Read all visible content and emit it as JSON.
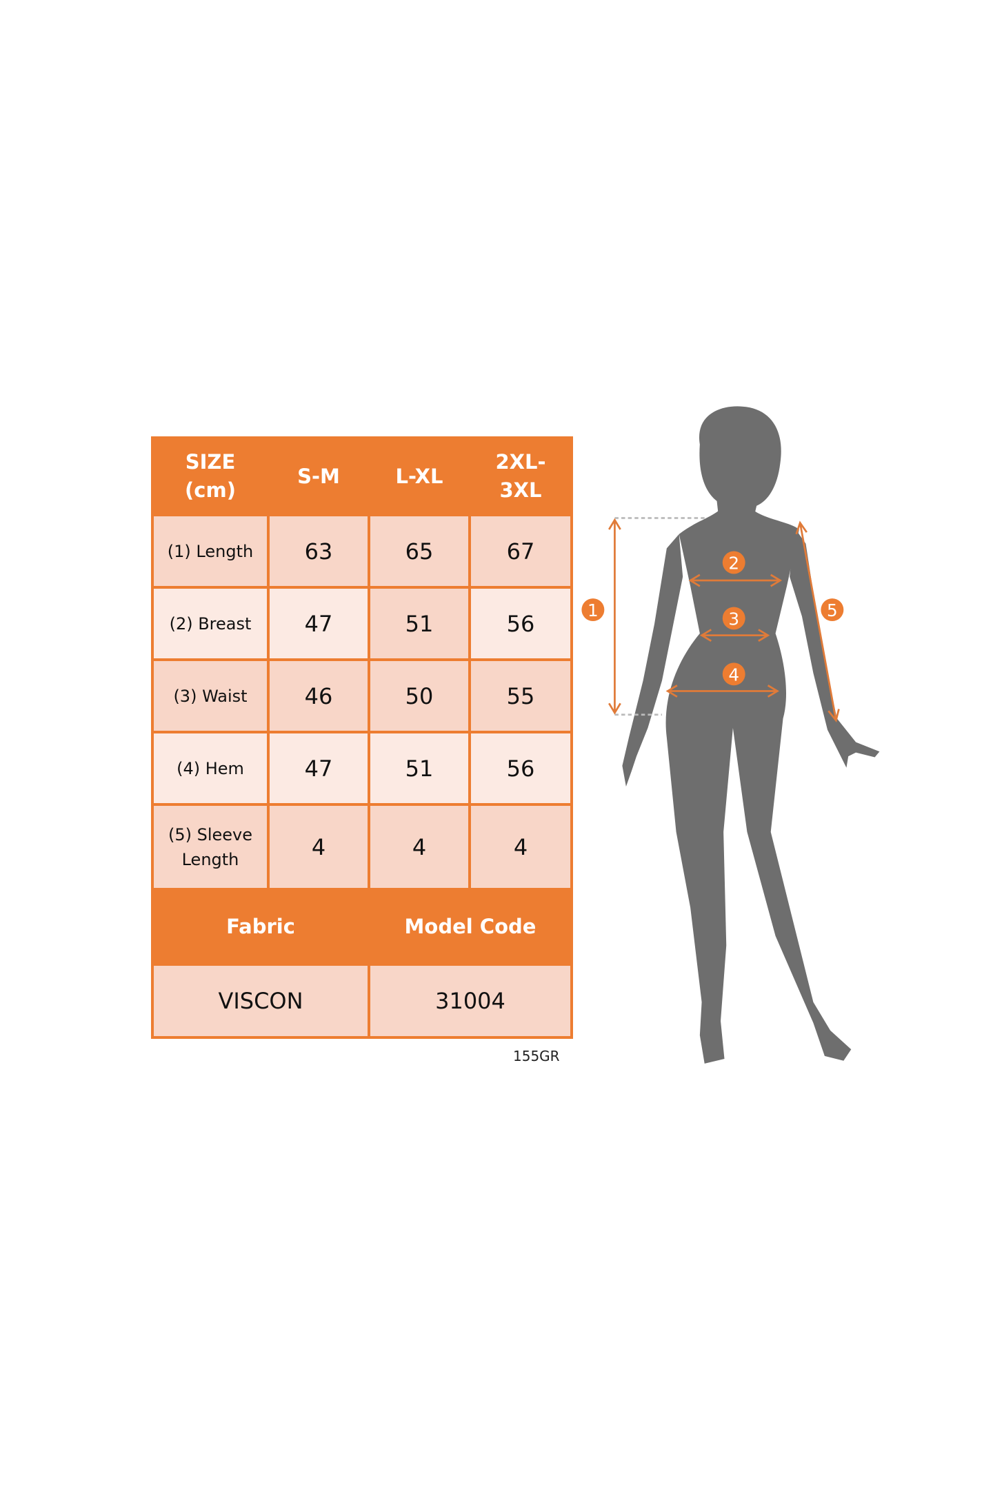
{
  "table": {
    "header": {
      "size_label": "SIZE\n(cm)",
      "sizes": [
        "S-M",
        "L-XL",
        "2XL-\n3XL"
      ]
    },
    "rows": [
      {
        "label": "(1) Length",
        "values": [
          "63",
          "65",
          "67"
        ]
      },
      {
        "label": "(2) Breast",
        "values": [
          "47",
          "51",
          "56"
        ]
      },
      {
        "label": "(3) Waist",
        "values": [
          "46",
          "50",
          "55"
        ]
      },
      {
        "label": "(4) Hem",
        "values": [
          "47",
          "51",
          "56"
        ]
      },
      {
        "label": "(5) Sleeve\nLength",
        "values": [
          "4",
          "4",
          "4"
        ]
      }
    ],
    "footer_headers": {
      "fabric": "Fabric",
      "model_code": "Model Code"
    },
    "footer_values": {
      "fabric": "VISCON",
      "model_code": "31004"
    }
  },
  "weight_label": "155GR",
  "figure": {
    "markers": [
      "1",
      "2",
      "3",
      "4",
      "5"
    ],
    "colors": {
      "accent": "#ED7D31",
      "silhouette": "#6E6E6E"
    }
  }
}
